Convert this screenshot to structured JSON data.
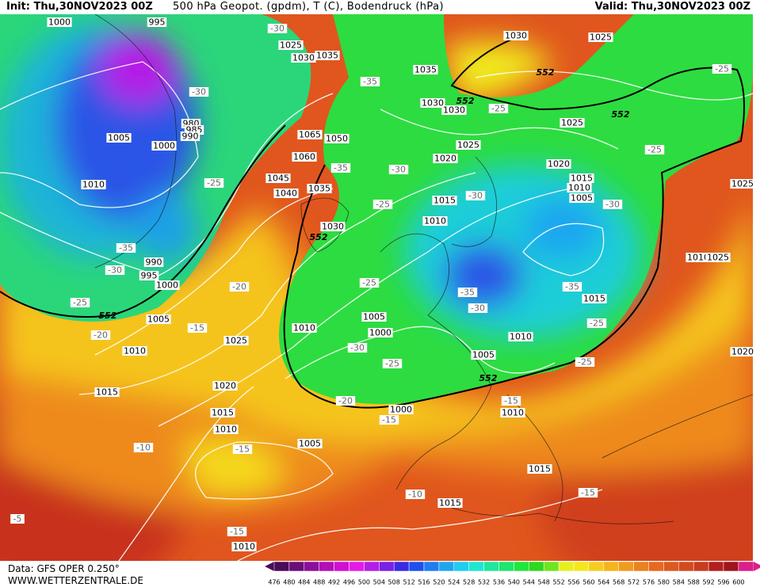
{
  "header": {
    "init": "Init: Thu,30NOV2023 00Z",
    "title": "500 hPa Geopot. (gpdm), T (C), Bodendruck (hPa)",
    "valid": "Valid: Thu,30NOV2023 00Z"
  },
  "footer": {
    "data": "Data: GFS OPER 0.250°",
    "website": "WWW.WETTERZENTRALE.DE"
  },
  "scale": {
    "labels": [
      476,
      480,
      484,
      488,
      492,
      496,
      500,
      504,
      508,
      512,
      516,
      520,
      524,
      528,
      532,
      536,
      540,
      544,
      548,
      552,
      556,
      560,
      564,
      568,
      572,
      576,
      580,
      584,
      588,
      592,
      596,
      600
    ],
    "colors": [
      "#4b0c5a",
      "#6a0f7a",
      "#8c0f9c",
      "#b30fb8",
      "#d10fd3",
      "#e61be6",
      "#b41ee6",
      "#7b20e6",
      "#3a2ae6",
      "#1f4ef0",
      "#1f7df0",
      "#1fa6f0",
      "#1fcdf0",
      "#1fe6d2",
      "#1fe6a0",
      "#1fe66e",
      "#1fe63c",
      "#2ed81f",
      "#6ee61f",
      "#e6f01f",
      "#f5e61f",
      "#f5cd1f",
      "#f5b41f",
      "#f09b1f",
      "#eb821f",
      "#e6691f",
      "#dc5a1f",
      "#d24b1f",
      "#c83c1f",
      "#b41e1e",
      "#a0141e",
      "#dc1e8c"
    ]
  },
  "map": {
    "pressure_labels": [
      1000,
      995,
      1025,
      1030,
      1035,
      1030,
      1025,
      1035,
      1030,
      1030,
      1025,
      1025,
      1020,
      1020,
      1015,
      1010,
      1005,
      1005,
      1000,
      980,
      985,
      990,
      1010,
      1065,
      1050,
      1060,
      1045,
      1040,
      1035,
      1030,
      1015,
      1010,
      990,
      995,
      1000,
      1005,
      1010,
      1025,
      1010,
      1005,
      1000,
      1010,
      1005,
      1015,
      1010,
      1025,
      1025,
      1020,
      1020,
      1015,
      1015,
      1010,
      1005,
      1000,
      1010,
      1015,
      1015,
      1010
    ],
    "temperature_labels": [
      -30,
      -35,
      -30,
      -25,
      -25,
      -25,
      -30,
      -35,
      -25,
      -25,
      -30,
      -30,
      -35,
      -30,
      -25,
      -20,
      -25,
      -35,
      -30,
      -35,
      -25,
      -15,
      -20,
      -30,
      -25,
      -25,
      -20,
      -15,
      -15,
      -10,
      -15,
      -10,
      -15,
      -5,
      -15
    ],
    "geopotential_labels": [
      552,
      552,
      552,
      552,
      552,
      552
    ]
  }
}
